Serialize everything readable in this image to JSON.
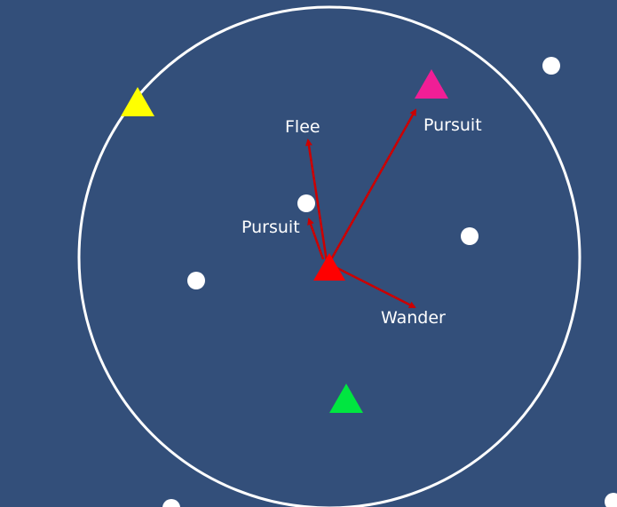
{
  "colors": {
    "background": "#334f7a",
    "range_circle": "#ffffff",
    "vector": "#cc0000",
    "dot": "#ffffff",
    "agent_red": "#ff0000",
    "agent_magenta": "#f01e96",
    "agent_yellow": "#ffff00",
    "agent_green": "#00e640"
  },
  "labels": {
    "flee": "Flee",
    "pursuit_agent": "Pursuit",
    "pursuit_dot": "Pursuit",
    "wander": "Wander"
  },
  "agents": [
    {
      "id": "red",
      "color_key": "agent_red",
      "role": "self"
    },
    {
      "id": "magenta",
      "color_key": "agent_magenta"
    },
    {
      "id": "yellow",
      "color_key": "agent_yellow"
    },
    {
      "id": "green",
      "color_key": "agent_green"
    }
  ]
}
